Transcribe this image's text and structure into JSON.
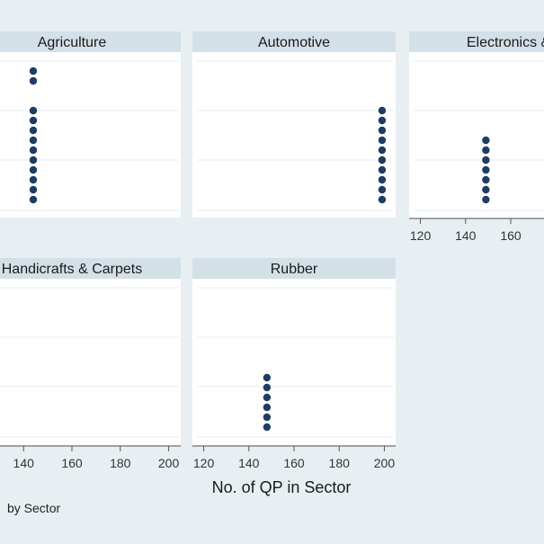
{
  "chart_data": {
    "type": "scatter",
    "layout": "faceted",
    "xlabel": "No. of QP in Sector",
    "note": "by Sector",
    "xlim": [
      115,
      205
    ],
    "xticks": [
      120,
      140,
      160,
      180,
      200
    ],
    "grid": true,
    "colors": {
      "background": "#e8eff3",
      "panel": "#ffffff",
      "strip": "#d4e0e7",
      "marker": "#1f3d63",
      "grid": "#e6edf1",
      "axis": "#555555"
    },
    "panels": [
      {
        "name": "Agriculture",
        "x": [
          144,
          144,
          144,
          144,
          144,
          144,
          144,
          144,
          144,
          144,
          144,
          144
        ],
        "y": [
          1,
          2,
          3,
          4,
          5,
          6,
          7,
          8,
          9,
          10,
          13,
          14
        ]
      },
      {
        "name": "Automotive",
        "x": [
          199,
          199,
          199,
          199,
          199,
          199,
          199,
          199,
          199,
          199
        ],
        "y": [
          1,
          2,
          3,
          4,
          5,
          6,
          7,
          8,
          9,
          10
        ]
      },
      {
        "name": "Electronics & Ha",
        "x": [
          149,
          149,
          149,
          149,
          149,
          149,
          149
        ],
        "y": [
          1,
          2,
          3,
          4,
          5,
          6,
          7
        ]
      },
      {
        "name": "Handicrafts & Carpets",
        "x": [],
        "y": []
      },
      {
        "name": "Rubber",
        "x": [
          148,
          148,
          148,
          148,
          148,
          148
        ],
        "y": [
          1,
          2,
          3,
          4,
          5,
          6
        ]
      }
    ]
  }
}
